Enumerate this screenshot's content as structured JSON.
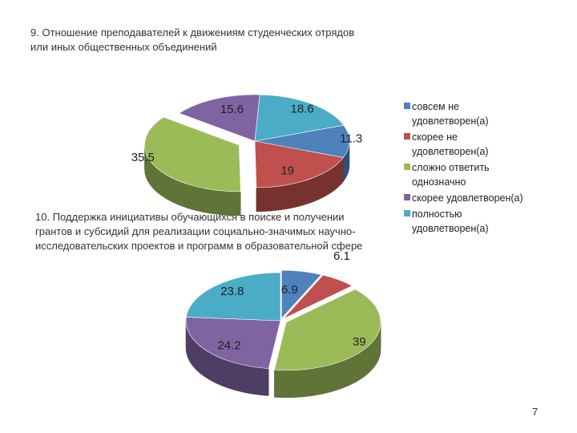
{
  "slide": {
    "page_number": "7"
  },
  "colors": {
    "dark_blue": "#4F81BD",
    "red": "#C0504D",
    "green": "#9BBB59",
    "purple": "#8064A2",
    "cyan": "#4BACC6"
  },
  "legend": [
    {
      "label": "совсем не удовлетворен(а)",
      "color": "#4F81BD"
    },
    {
      "label": "скорее не удовлетворен(а)",
      "color": "#C0504D"
    },
    {
      "label": "сложно ответить однозначно",
      "color": "#9BBB59"
    },
    {
      "label": "скорее удовлетворен(а)",
      "color": "#8064A2"
    },
    {
      "label": "полностью удовлетворен(а)",
      "color": "#4BACC6"
    }
  ],
  "chart_data": [
    {
      "type": "pie",
      "title": "9. Отношение преподавателей к движениям студенческих отрядов или иных общественных объединений",
      "categories": [
        "совсем не удовлетворен(а)",
        "скорее не удовлетворен(а)",
        "сложно ответить однозначно",
        "скорее удовлетворен(а)",
        "полностью удовлетворен(а)"
      ],
      "values": [
        11.3,
        19,
        35.5,
        15.6,
        18.6
      ],
      "value_labels": [
        "11.3",
        "19",
        "35.5",
        "15.6",
        "18.6"
      ],
      "colors": [
        "#4F81BD",
        "#C0504D",
        "#9BBB59",
        "#8064A2",
        "#4BACC6"
      ],
      "legend_position": "right"
    },
    {
      "type": "pie",
      "title": "10. Поддержка инициативы обучающихся в поиске и получении грантов и субсидий для реализации социально-значимых научно-исследовательских проектов и программ в образовательной сфере",
      "categories": [
        "совсем не удовлетворен(а)",
        "скорее не удовлетворен(а)",
        "сложно ответить однозначно",
        "скорее удовлетворен(а)",
        "полностью удовлетворен(а)"
      ],
      "values": [
        6.9,
        6.1,
        39,
        24.2,
        23.8
      ],
      "value_labels": [
        "6.9",
        "6.1",
        "39",
        "24.2",
        "23.8"
      ],
      "colors": [
        "#4F81BD",
        "#C0504D",
        "#9BBB59",
        "#8064A2",
        "#4BACC6"
      ],
      "legend_position": "right"
    }
  ]
}
